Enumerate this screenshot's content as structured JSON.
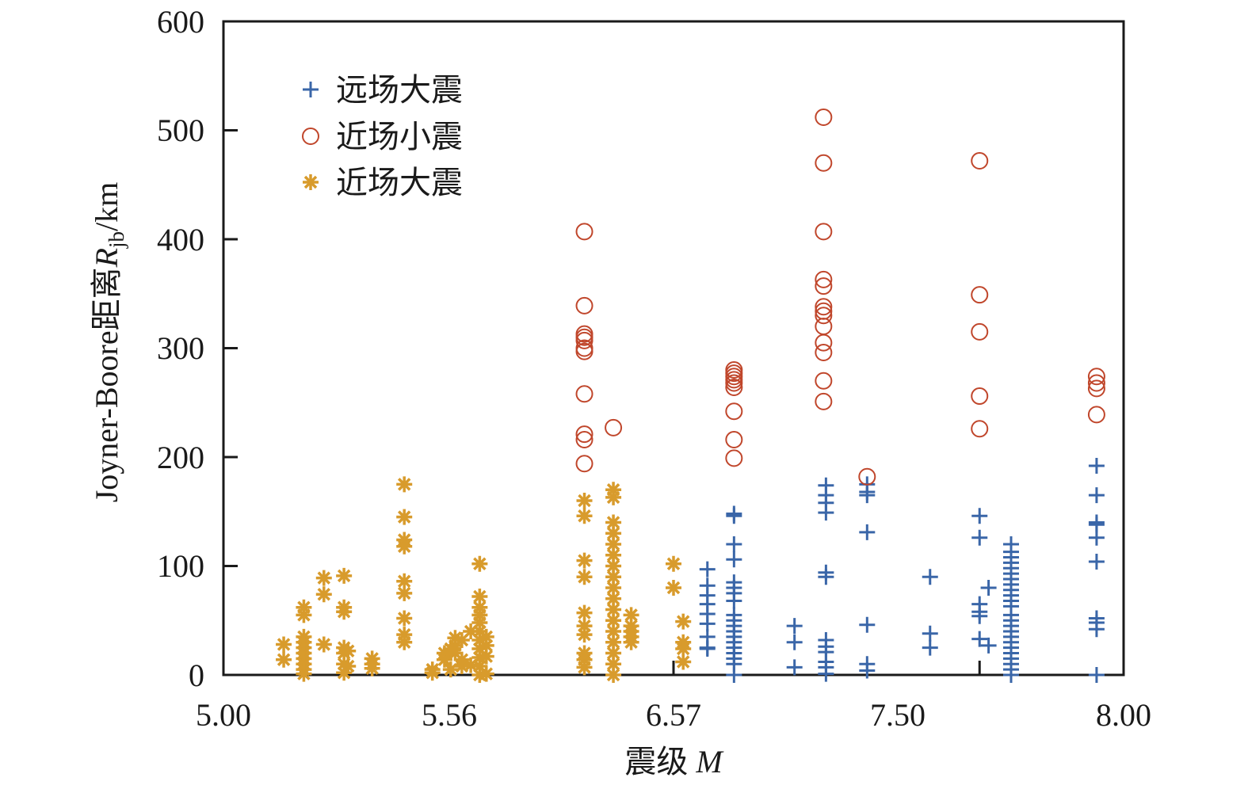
{
  "chart_data": {
    "type": "scatter",
    "title": "",
    "xlabel": "震级",
    "xlabel_var": "M",
    "ylabel_prefix": "Joyner-Boore距离",
    "ylabel_var": "R",
    "ylabel_sub": "jb",
    "ylabel_unit": "/km",
    "x_tick_labels": [
      "5.00",
      "5.56",
      "6.57",
      "7.50",
      "8.00"
    ],
    "x_ticks": [
      5.0,
      5.56,
      6.57,
      7.5,
      8.0
    ],
    "x_axis_note": "non-uniform scale: tick labels equally spaced",
    "x_minor_ticks": [
      6.57,
      7.68
    ],
    "y_tick_labels": [
      "0",
      "100",
      "200",
      "300",
      "400",
      "500",
      "600"
    ],
    "y_ticks": [
      0,
      100,
      200,
      300,
      400,
      500,
      600
    ],
    "xlim": [
      5.0,
      8.0
    ],
    "ylim": [
      0,
      600
    ],
    "grid": false,
    "legend_position": "top-left",
    "colors": {
      "far_large": "#3a66a8",
      "near_small": "#c0462b",
      "near_large": "#d89b2c",
      "axis": "#1a1a1a"
    },
    "series": [
      {
        "name": "远场大震",
        "marker": "plus",
        "color": "#3a66a8",
        "points": [
          [
            6.71,
            97
          ],
          [
            6.71,
            82
          ],
          [
            6.71,
            73
          ],
          [
            6.71,
            65
          ],
          [
            6.71,
            56
          ],
          [
            6.71,
            47
          ],
          [
            6.71,
            35
          ],
          [
            6.71,
            25
          ],
          [
            6.71,
            24
          ],
          [
            6.82,
            148
          ],
          [
            6.82,
            146
          ],
          [
            6.82,
            120
          ],
          [
            6.82,
            106
          ],
          [
            6.82,
            85
          ],
          [
            6.82,
            80
          ],
          [
            6.82,
            75
          ],
          [
            6.82,
            68
          ],
          [
            6.82,
            55
          ],
          [
            6.82,
            50
          ],
          [
            6.82,
            45
          ],
          [
            6.82,
            40
          ],
          [
            6.82,
            35
          ],
          [
            6.82,
            30
          ],
          [
            6.82,
            25
          ],
          [
            6.82,
            20
          ],
          [
            6.82,
            15
          ],
          [
            6.82,
            10
          ],
          [
            6.82,
            0
          ],
          [
            7.07,
            45
          ],
          [
            7.07,
            30
          ],
          [
            7.07,
            7
          ],
          [
            7.2,
            174
          ],
          [
            7.2,
            165
          ],
          [
            7.2,
            158
          ],
          [
            7.2,
            149
          ],
          [
            7.2,
            94
          ],
          [
            7.2,
            90
          ],
          [
            7.2,
            32
          ],
          [
            7.2,
            26
          ],
          [
            7.2,
            21
          ],
          [
            7.2,
            12
          ],
          [
            7.2,
            7
          ],
          [
            7.2,
            1
          ],
          [
            7.37,
            175
          ],
          [
            7.37,
            168
          ],
          [
            7.37,
            165
          ],
          [
            7.37,
            131
          ],
          [
            7.37,
            46
          ],
          [
            7.37,
            10
          ],
          [
            7.37,
            4
          ],
          [
            7.57,
            90
          ],
          [
            7.57,
            38
          ],
          [
            7.57,
            25
          ],
          [
            7.68,
            146
          ],
          [
            7.68,
            126
          ],
          [
            7.68,
            65
          ],
          [
            7.68,
            58
          ],
          [
            7.68,
            54
          ],
          [
            7.68,
            33
          ],
          [
            7.7,
            80
          ],
          [
            7.7,
            27
          ],
          [
            7.75,
            120
          ],
          [
            7.75,
            113
          ],
          [
            7.75,
            108
          ],
          [
            7.75,
            103
          ],
          [
            7.75,
            98
          ],
          [
            7.75,
            93
          ],
          [
            7.75,
            88
          ],
          [
            7.75,
            83
          ],
          [
            7.75,
            78
          ],
          [
            7.75,
            73
          ],
          [
            7.75,
            68
          ],
          [
            7.75,
            63
          ],
          [
            7.75,
            55
          ],
          [
            7.75,
            50
          ],
          [
            7.75,
            45
          ],
          [
            7.75,
            40
          ],
          [
            7.75,
            35
          ],
          [
            7.75,
            30
          ],
          [
            7.75,
            25
          ],
          [
            7.75,
            20
          ],
          [
            7.75,
            15
          ],
          [
            7.75,
            10
          ],
          [
            7.75,
            5
          ],
          [
            7.75,
            0
          ],
          [
            7.94,
            192
          ],
          [
            7.94,
            165
          ],
          [
            7.94,
            140
          ],
          [
            7.94,
            138
          ],
          [
            7.94,
            126
          ],
          [
            7.94,
            104
          ],
          [
            7.94,
            52
          ],
          [
            7.94,
            48
          ],
          [
            7.94,
            42
          ],
          [
            7.94,
            0
          ]
        ]
      },
      {
        "name": "近场小震",
        "marker": "circle",
        "color": "#c0462b",
        "points": [
          [
            6.17,
            407
          ],
          [
            6.17,
            339
          ],
          [
            6.17,
            313
          ],
          [
            6.17,
            310
          ],
          [
            6.17,
            307
          ],
          [
            6.17,
            300
          ],
          [
            6.17,
            297
          ],
          [
            6.17,
            258
          ],
          [
            6.17,
            221
          ],
          [
            6.17,
            216
          ],
          [
            6.17,
            194
          ],
          [
            6.3,
            227
          ],
          [
            6.82,
            280
          ],
          [
            6.82,
            277
          ],
          [
            6.82,
            274
          ],
          [
            6.82,
            271
          ],
          [
            6.82,
            268
          ],
          [
            6.82,
            264
          ],
          [
            6.82,
            242
          ],
          [
            6.82,
            216
          ],
          [
            6.82,
            199
          ],
          [
            7.19,
            512
          ],
          [
            7.19,
            470
          ],
          [
            7.19,
            407
          ],
          [
            7.19,
            363
          ],
          [
            7.19,
            357
          ],
          [
            7.19,
            338
          ],
          [
            7.19,
            334
          ],
          [
            7.19,
            330
          ],
          [
            7.19,
            320
          ],
          [
            7.19,
            305
          ],
          [
            7.19,
            296
          ],
          [
            7.19,
            270
          ],
          [
            7.19,
            251
          ],
          [
            7.37,
            182
          ],
          [
            7.68,
            472
          ],
          [
            7.68,
            349
          ],
          [
            7.68,
            315
          ],
          [
            7.68,
            256
          ],
          [
            7.68,
            226
          ],
          [
            7.94,
            274
          ],
          [
            7.94,
            268
          ],
          [
            7.94,
            263
          ],
          [
            7.94,
            239
          ]
        ]
      },
      {
        "name": "近场大震",
        "marker": "asterisk",
        "color": "#d89b2c",
        "points": [
          [
            5.15,
            28
          ],
          [
            5.15,
            14
          ],
          [
            5.2,
            62
          ],
          [
            5.2,
            55
          ],
          [
            5.2,
            35
          ],
          [
            5.2,
            30
          ],
          [
            5.2,
            25
          ],
          [
            5.2,
            20
          ],
          [
            5.2,
            15
          ],
          [
            5.2,
            10
          ],
          [
            5.2,
            5
          ],
          [
            5.2,
            1
          ],
          [
            5.25,
            89
          ],
          [
            5.25,
            74
          ],
          [
            5.25,
            28
          ],
          [
            5.3,
            91
          ],
          [
            5.3,
            62
          ],
          [
            5.3,
            58
          ],
          [
            5.3,
            25
          ],
          [
            5.3,
            20
          ],
          [
            5.3,
            10
          ],
          [
            5.3,
            2
          ],
          [
            5.31,
            22
          ],
          [
            5.31,
            8
          ],
          [
            5.37,
            15
          ],
          [
            5.37,
            10
          ],
          [
            5.37,
            6
          ],
          [
            5.45,
            175
          ],
          [
            5.45,
            145
          ],
          [
            5.45,
            124
          ],
          [
            5.45,
            118
          ],
          [
            5.45,
            86
          ],
          [
            5.45,
            75
          ],
          [
            5.45,
            52
          ],
          [
            5.45,
            37
          ],
          [
            5.45,
            30
          ],
          [
            5.52,
            5
          ],
          [
            5.52,
            2
          ],
          [
            5.55,
            20
          ],
          [
            5.55,
            14
          ],
          [
            5.57,
            24
          ],
          [
            5.57,
            5
          ],
          [
            5.59,
            34
          ],
          [
            5.59,
            27
          ],
          [
            5.59,
            20
          ],
          [
            5.62,
            32
          ],
          [
            5.62,
            14
          ],
          [
            5.62,
            8
          ],
          [
            5.66,
            40
          ],
          [
            5.66,
            9
          ],
          [
            5.7,
            102
          ],
          [
            5.7,
            72
          ],
          [
            5.7,
            62
          ],
          [
            5.7,
            55
          ],
          [
            5.7,
            48
          ],
          [
            5.7,
            40
          ],
          [
            5.7,
            32
          ],
          [
            5.7,
            24
          ],
          [
            5.7,
            16
          ],
          [
            5.7,
            8
          ],
          [
            5.7,
            0
          ],
          [
            5.73,
            35
          ],
          [
            5.73,
            27
          ],
          [
            5.73,
            17
          ],
          [
            5.73,
            1
          ],
          [
            6.17,
            160
          ],
          [
            6.17,
            146
          ],
          [
            6.17,
            105
          ],
          [
            6.17,
            90
          ],
          [
            6.17,
            57
          ],
          [
            6.17,
            45
          ],
          [
            6.17,
            37
          ],
          [
            6.17,
            20
          ],
          [
            6.17,
            14
          ],
          [
            6.17,
            7
          ],
          [
            6.3,
            170
          ],
          [
            6.3,
            163
          ],
          [
            6.3,
            140
          ],
          [
            6.3,
            130
          ],
          [
            6.3,
            120
          ],
          [
            6.3,
            110
          ],
          [
            6.3,
            100
          ],
          [
            6.3,
            90
          ],
          [
            6.3,
            80
          ],
          [
            6.3,
            70
          ],
          [
            6.3,
            60
          ],
          [
            6.3,
            50
          ],
          [
            6.3,
            40
          ],
          [
            6.3,
            30
          ],
          [
            6.3,
            20
          ],
          [
            6.3,
            10
          ],
          [
            6.3,
            0
          ],
          [
            6.38,
            55
          ],
          [
            6.38,
            45
          ],
          [
            6.38,
            40
          ],
          [
            6.38,
            35
          ],
          [
            6.38,
            30
          ],
          [
            6.57,
            102
          ],
          [
            6.57,
            80
          ],
          [
            6.61,
            49
          ],
          [
            6.61,
            30
          ],
          [
            6.61,
            24
          ],
          [
            6.61,
            12
          ]
        ]
      }
    ]
  }
}
